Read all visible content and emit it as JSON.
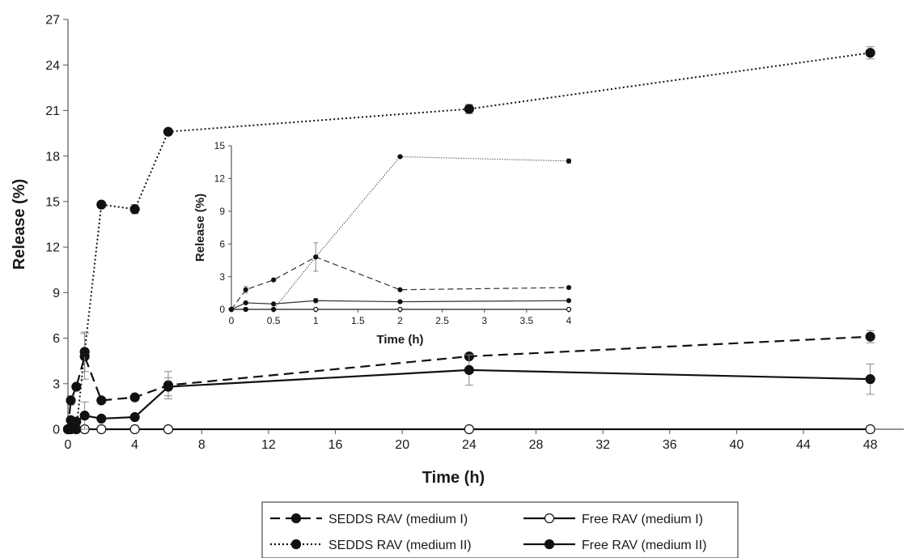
{
  "chart_data": [
    {
      "type": "line",
      "role": "main",
      "xlabel": "Time (h)",
      "ylabel": "Release (%)",
      "xlim": [
        0,
        50
      ],
      "ylim": [
        0,
        27
      ],
      "x_ticks": [
        "0",
        "4",
        "8",
        "12",
        "16",
        "20",
        "24",
        "28",
        "32",
        "36",
        "40",
        "44",
        "48"
      ],
      "y_ticks": [
        "0",
        "3",
        "6",
        "9",
        "12",
        "15",
        "18",
        "21",
        "24",
        "27"
      ],
      "legend": {
        "placement": "bottom-center",
        "columns": 2
      },
      "series": [
        {
          "name": "SEDDS RAV (medium I)",
          "style": "dashed",
          "marker": "filled",
          "x": [
            0,
            0.17,
            0.5,
            1,
            2,
            4,
            6,
            24,
            48
          ],
          "y": [
            0,
            1.9,
            2.8,
            4.8,
            1.9,
            2.1,
            2.9,
            4.8,
            6.1
          ],
          "err": [
            0,
            0.3,
            0,
            1.5,
            0,
            0,
            0.9,
            0,
            0.4
          ]
        },
        {
          "name": "Free RAV (medium I)",
          "style": "solid",
          "marker": "open",
          "x": [
            0,
            0.17,
            0.5,
            1,
            2,
            4,
            6,
            24,
            48
          ],
          "y": [
            0,
            0,
            0,
            0,
            0,
            0,
            0,
            0,
            0
          ],
          "err": [
            0,
            0,
            0,
            0,
            0,
            0,
            0,
            0,
            0
          ]
        },
        {
          "name": "SEDDS RAV (medium II)",
          "style": "dotted",
          "marker": "filled",
          "x": [
            0,
            0.17,
            0.5,
            1,
            2,
            4,
            6,
            24,
            48
          ],
          "y": [
            0,
            0,
            0,
            5.1,
            14.8,
            14.5,
            19.6,
            21.1,
            24.8
          ],
          "err": [
            0,
            0,
            0,
            1.3,
            0.2,
            0.3,
            0.1,
            0.3,
            0.4
          ]
        },
        {
          "name": "Free RAV (medium II)",
          "style": "solid",
          "marker": "filled",
          "x": [
            0,
            0.17,
            0.5,
            1,
            2,
            4,
            6,
            24,
            48
          ],
          "y": [
            0,
            0.6,
            0.5,
            0.9,
            0.7,
            0.8,
            2.8,
            3.9,
            3.3
          ],
          "err": [
            0,
            0,
            0,
            0.9,
            0,
            0,
            0.6,
            1.0,
            1.0
          ]
        }
      ]
    },
    {
      "type": "line",
      "role": "inset",
      "xlabel": "Time (h)",
      "ylabel": "Release (%)",
      "xlim": [
        0,
        4
      ],
      "ylim": [
        0,
        15
      ],
      "x_ticks": [
        "0",
        "0.5",
        "1",
        "1.5",
        "2",
        "2.5",
        "3",
        "3.5",
        "4"
      ],
      "y_ticks": [
        "0",
        "3",
        "6",
        "9",
        "12",
        "15"
      ],
      "series": [
        {
          "name": "SEDDS RAV (medium I)",
          "style": "dashed",
          "marker": "filled",
          "x": [
            0,
            0.17,
            0.5,
            1,
            2,
            4
          ],
          "y": [
            0,
            1.8,
            2.7,
            4.8,
            1.8,
            2.0
          ],
          "err": [
            0,
            0.3,
            0,
            1.3,
            0,
            0
          ]
        },
        {
          "name": "Free RAV (medium I)",
          "style": "solid",
          "marker": "open",
          "x": [
            0,
            0.17,
            0.5,
            1,
            2,
            4
          ],
          "y": [
            0,
            0,
            0,
            0,
            0,
            0
          ],
          "err": [
            0,
            0,
            0,
            0,
            0,
            0
          ]
        },
        {
          "name": "SEDDS RAV (medium II)",
          "style": "dotted",
          "marker": "filled",
          "x": [
            0,
            0.17,
            0.5,
            1,
            2,
            4
          ],
          "y": [
            0,
            0,
            0,
            4.8,
            14.0,
            13.6
          ],
          "err": [
            0,
            0,
            0,
            0,
            0.1,
            0.2
          ]
        },
        {
          "name": "Free RAV (medium II)",
          "style": "solid",
          "marker": "filled",
          "x": [
            0,
            0.17,
            0.5,
            1,
            2,
            4
          ],
          "y": [
            0,
            0.6,
            0.5,
            0.8,
            0.7,
            0.8
          ],
          "err": [
            0,
            0,
            0,
            0.2,
            0,
            0
          ]
        }
      ]
    }
  ]
}
